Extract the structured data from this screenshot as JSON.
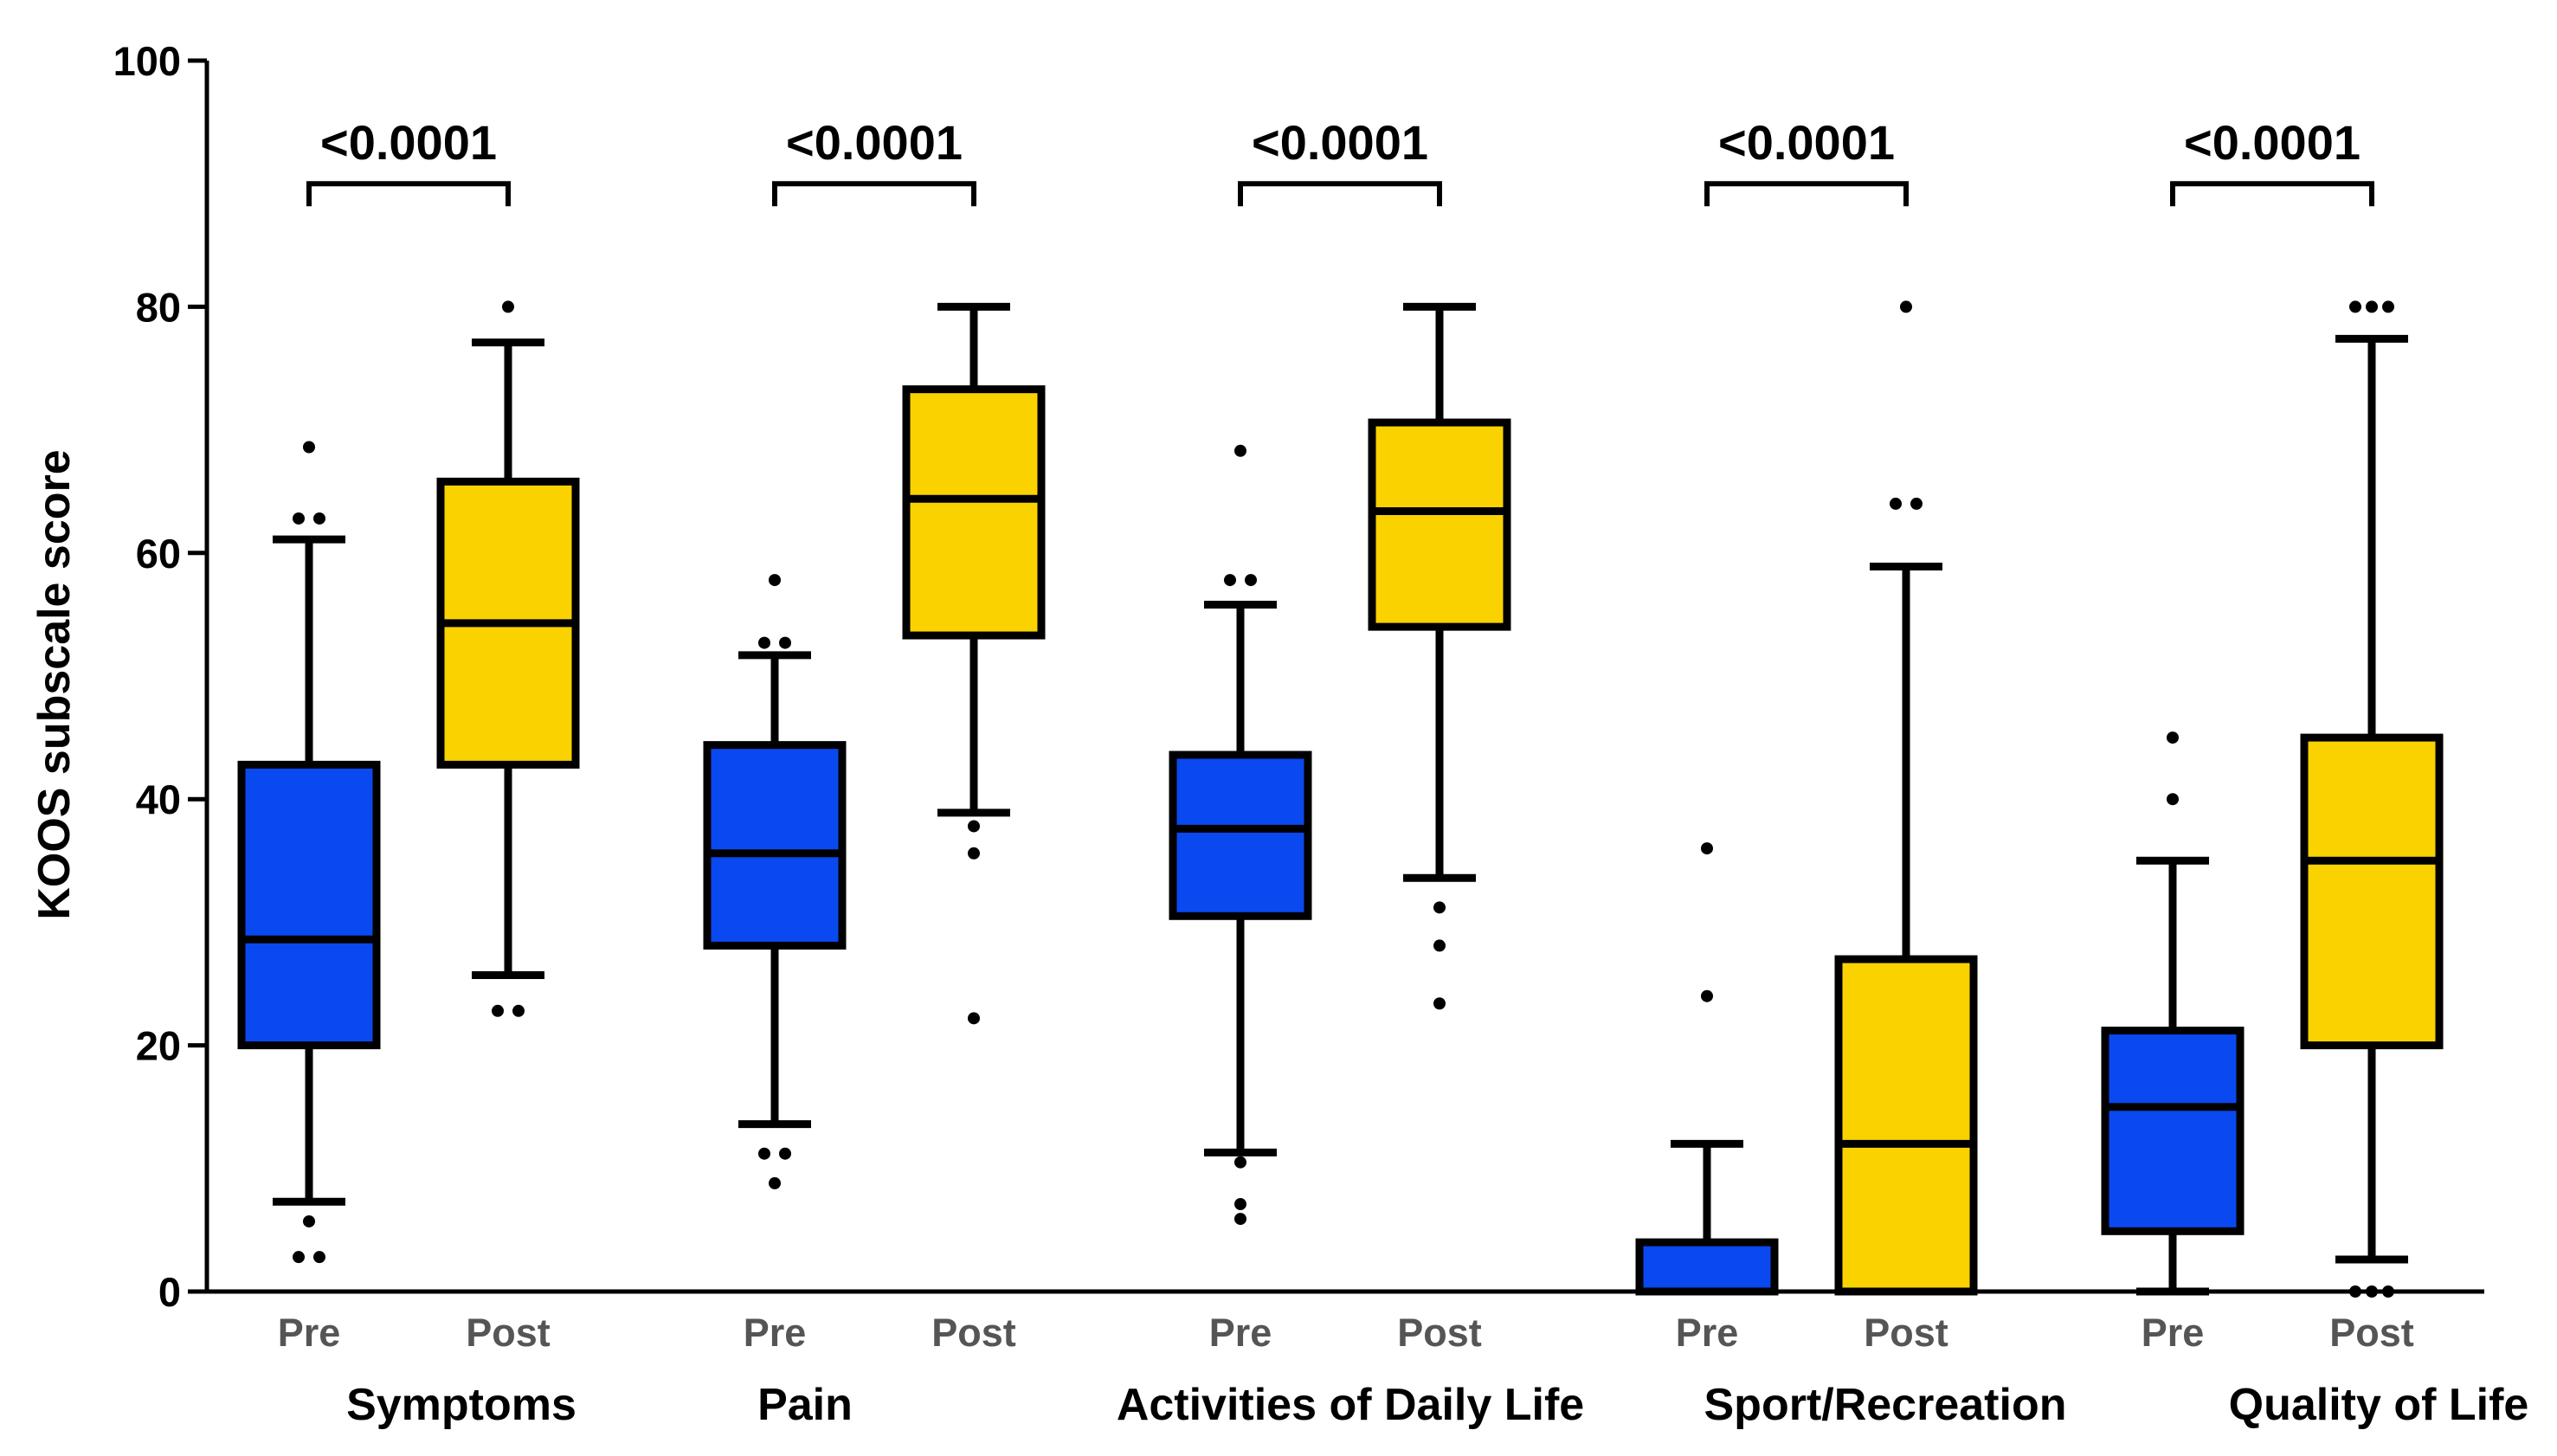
{
  "chart_data": {
    "type": "boxplot",
    "ylabel": "KOOS subscale score",
    "ylim": [
      0,
      100
    ],
    "yticks": [
      0,
      20,
      40,
      60,
      80,
      100
    ],
    "colors": {
      "Pre": "#0a48f0",
      "Post": "#fad200",
      "stroke": "#000000"
    },
    "groups": [
      {
        "name": "Symptoms",
        "p_value": "<0.0001",
        "boxes": [
          {
            "label": "Pre",
            "min": 7.3,
            "q1": 20,
            "median": 28.6,
            "q3": 42.8,
            "max": 61.1,
            "outliers": [
              68.6,
              62.8,
              62.8,
              5.7,
              2.8,
              2.8
            ]
          },
          {
            "label": "Post",
            "min": 25.7,
            "q1": 42.8,
            "median": 54.3,
            "q3": 65.8,
            "max": 77.1,
            "outliers": [
              80,
              22.8,
              22.8
            ]
          }
        ]
      },
      {
        "name": "Pain",
        "p_value": "<0.0001",
        "boxes": [
          {
            "label": "Pre",
            "min": 13.6,
            "q1": 28.1,
            "median": 35.6,
            "q3": 44.4,
            "max": 51.7,
            "outliers": [
              57.8,
              52.7,
              52.7,
              11.2,
              11.2,
              8.8
            ]
          },
          {
            "label": "Post",
            "min": 38.9,
            "q1": 53.3,
            "median": 64.4,
            "q3": 73.3,
            "max": 80,
            "outliers": [
              37.8,
              35.6,
              22.2
            ]
          }
        ]
      },
      {
        "name": "Activities of Daily Life",
        "p_value": "<0.0001",
        "boxes": [
          {
            "label": "Pre",
            "min": 11.3,
            "q1": 30.5,
            "median": 37.6,
            "q3": 43.6,
            "max": 55.8,
            "outliers": [
              68.3,
              57.8,
              57.8,
              10.5,
              7.1,
              5.9
            ]
          },
          {
            "label": "Post",
            "min": 33.6,
            "q1": 54,
            "median": 63.4,
            "q3": 70.6,
            "max": 80,
            "outliers": [
              31.2,
              28.1,
              23.4
            ]
          }
        ]
      },
      {
        "name": "Sport/Recreation",
        "p_value": "<0.0001",
        "boxes": [
          {
            "label": "Pre",
            "min": 0,
            "q1": 0,
            "median": 0,
            "q3": 4,
            "max": 12,
            "outliers": [
              36,
              24
            ]
          },
          {
            "label": "Post",
            "min": 0,
            "q1": 0,
            "median": 12,
            "q3": 27,
            "max": 58.9,
            "outliers": [
              80,
              64,
              64
            ]
          }
        ]
      },
      {
        "name": "Quality of Life",
        "p_value": "<0.0001",
        "boxes": [
          {
            "label": "Pre",
            "min": 0,
            "q1": 4.9,
            "median": 15,
            "q3": 21.2,
            "max": 35,
            "outliers": [
              45,
              40
            ]
          },
          {
            "label": "Post",
            "min": 2.6,
            "q1": 20,
            "median": 35,
            "q3": 45,
            "max": 77.4,
            "outliers": [
              80,
              80,
              80,
              0,
              0,
              0
            ]
          }
        ]
      }
    ]
  }
}
